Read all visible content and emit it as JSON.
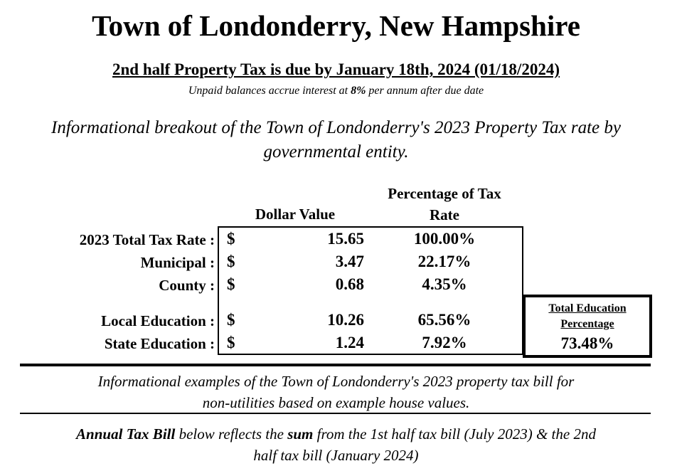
{
  "title": "Town of Londonderry, New Hampshire",
  "due_notice": "2nd half Property Tax is due by January 18th, 2024 (01/18/2024)",
  "interest_note": {
    "before": "Unpaid balances accrue interest at",
    "rate": "8%",
    "after": "per annum after due date"
  },
  "breakout_heading": {
    "line1": "Informational breakout of the Town of Londonderry's 2023 Property Tax rate by",
    "line2": "governmental entity."
  },
  "table": {
    "columns": {
      "dollar": "Dollar Value",
      "pct_line1": "Percentage of Tax",
      "pct_line2": "Rate"
    },
    "currency": "$",
    "rows": [
      {
        "label": "2023 Total Tax Rate :",
        "value": "15.65",
        "pct": "100.00%"
      },
      {
        "label": "Municipal :",
        "value": "3.47",
        "pct": "22.17%"
      },
      {
        "label": "County :",
        "value": "0.68",
        "pct": "4.35%"
      },
      {
        "label": "Local Education :",
        "value": "10.26",
        "pct": "65.56%"
      },
      {
        "label": "State Education :",
        "value": "1.24",
        "pct": "7.92%"
      }
    ]
  },
  "education_total": {
    "label_line1": "Total Education",
    "label_line2": "Percentage",
    "value": "73.48%"
  },
  "examples_text": {
    "line1": "Informational examples of the Town of Londonderry's 2023 property tax bill for",
    "line2": "non-utilities based on example house values."
  },
  "annual_text": {
    "bold1": "Annual Tax Bill",
    "mid": "below reflects the",
    "bold2": "sum",
    "rest": "from the 1st half tax bill (July 2023) & the 2nd",
    "line2": "half tax bill (January 2024)"
  }
}
